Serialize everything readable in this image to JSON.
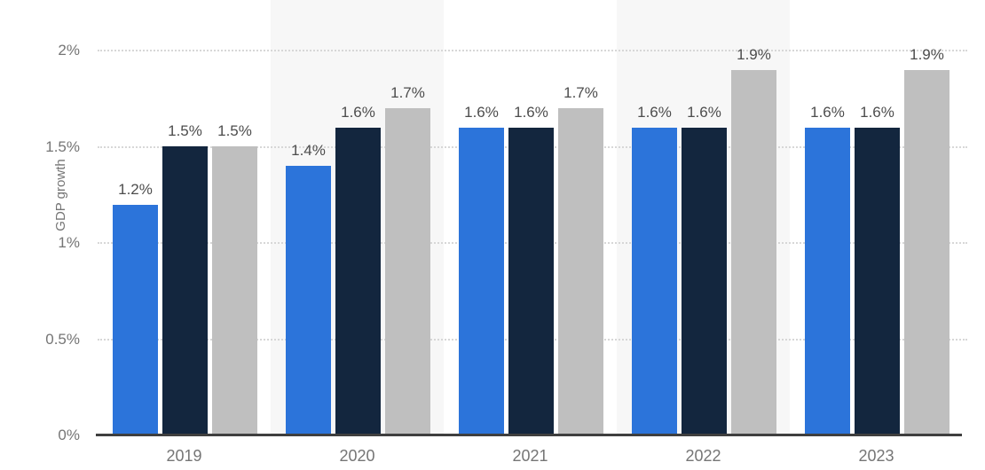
{
  "chart_data": {
    "type": "bar",
    "title": "",
    "ylabel": "GDP growth",
    "xlabel": "",
    "categories": [
      "2019",
      "2020",
      "2021",
      "2022",
      "2023"
    ],
    "series": [
      {
        "name": "series-1-blue",
        "color": "#2c74da",
        "values": [
          1.2,
          1.4,
          1.6,
          1.6,
          1.6
        ],
        "labels": [
          "1.2%",
          "1.4%",
          "1.6%",
          "1.6%",
          "1.6%"
        ]
      },
      {
        "name": "series-2-navy",
        "color": "#13263e",
        "values": [
          1.5,
          1.6,
          1.6,
          1.6,
          1.6
        ],
        "labels": [
          "1.5%",
          "1.6%",
          "1.6%",
          "1.6%",
          "1.6%"
        ]
      },
      {
        "name": "series-3-gray",
        "color": "#bfbfbf",
        "values": [
          1.5,
          1.7,
          1.7,
          1.9,
          1.9
        ],
        "labels": [
          "1.5%",
          "1.7%",
          "1.7%",
          "1.9%",
          "1.9%"
        ]
      }
    ],
    "yticks": [
      {
        "label": "2%",
        "value": 2
      },
      {
        "label": "1.5%",
        "value": 1.5
      },
      {
        "label": "1%",
        "value": 1
      },
      {
        "label": "0.5%",
        "value": 0.5
      },
      {
        "label": "0%",
        "value": 0
      }
    ],
    "ylim": [
      0,
      2.26
    ],
    "grid": "dotted-horizontal",
    "legend": "none",
    "background_bands": "alternate-category-columns"
  },
  "colors": {
    "bar_blue": "#2c74da",
    "bar_navy": "#13263e",
    "bar_gray": "#bfbfbf",
    "band_bg": "#f7f7f7",
    "gridline": "#d7d7d7",
    "axis_line": "#3f3f3f",
    "tick_text": "#757575",
    "value_text": "#4d4d4d"
  }
}
